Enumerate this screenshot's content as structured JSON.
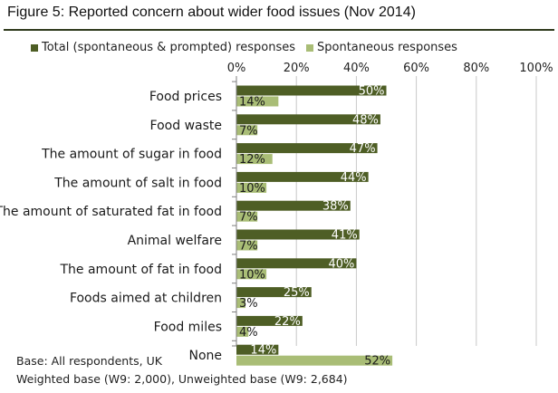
{
  "figure": {
    "title": "Figure 5: Reported concern about wider food issues (Nov 2014)",
    "footer_lines": [
      "Base: All respondents, UK",
      "Weighted base (W9: 2,000), Unweighted base (W9: 2,684)"
    ]
  },
  "colors": {
    "title_rule": "#2f3a1c",
    "gridline": "#c8c8c8",
    "axis": "#7f7f7f"
  },
  "chart_data": {
    "type": "bar",
    "orientation": "horizontal",
    "categories": [
      "Food prices",
      "Food waste",
      "The amount of sugar in food",
      "The amount of salt in food",
      "The amount of saturated fat in food",
      "Animal welfare",
      "The amount of fat in food",
      "Foods aimed at children",
      "Food miles",
      "None"
    ],
    "series": [
      {
        "name": "Total (spontaneous & prompted) responses",
        "color": "#4e5e25",
        "values": [
          50,
          48,
          47,
          44,
          38,
          41,
          40,
          25,
          22,
          14
        ],
        "labels": [
          "50%",
          "48%",
          "47%",
          "44%",
          "38%",
          "41%",
          "40%",
          "25%",
          "22%",
          "14%"
        ]
      },
      {
        "name": "Spontaneous responses",
        "color": "#a9bd76",
        "values": [
          14,
          7,
          12,
          10,
          7,
          7,
          10,
          3,
          4,
          52
        ],
        "labels": [
          "14%",
          "7%",
          "12%",
          "10%",
          "7%",
          "7%",
          "10%",
          "3%",
          "4%",
          "52%"
        ]
      }
    ],
    "xlim": [
      0,
      100
    ],
    "xticks": [
      0,
      20,
      40,
      60,
      80,
      100
    ],
    "xtick_labels": [
      "0%",
      "20%",
      "40%",
      "60%",
      "80%",
      "100%"
    ],
    "axis_position": "top",
    "grid": true,
    "legend": "top"
  }
}
